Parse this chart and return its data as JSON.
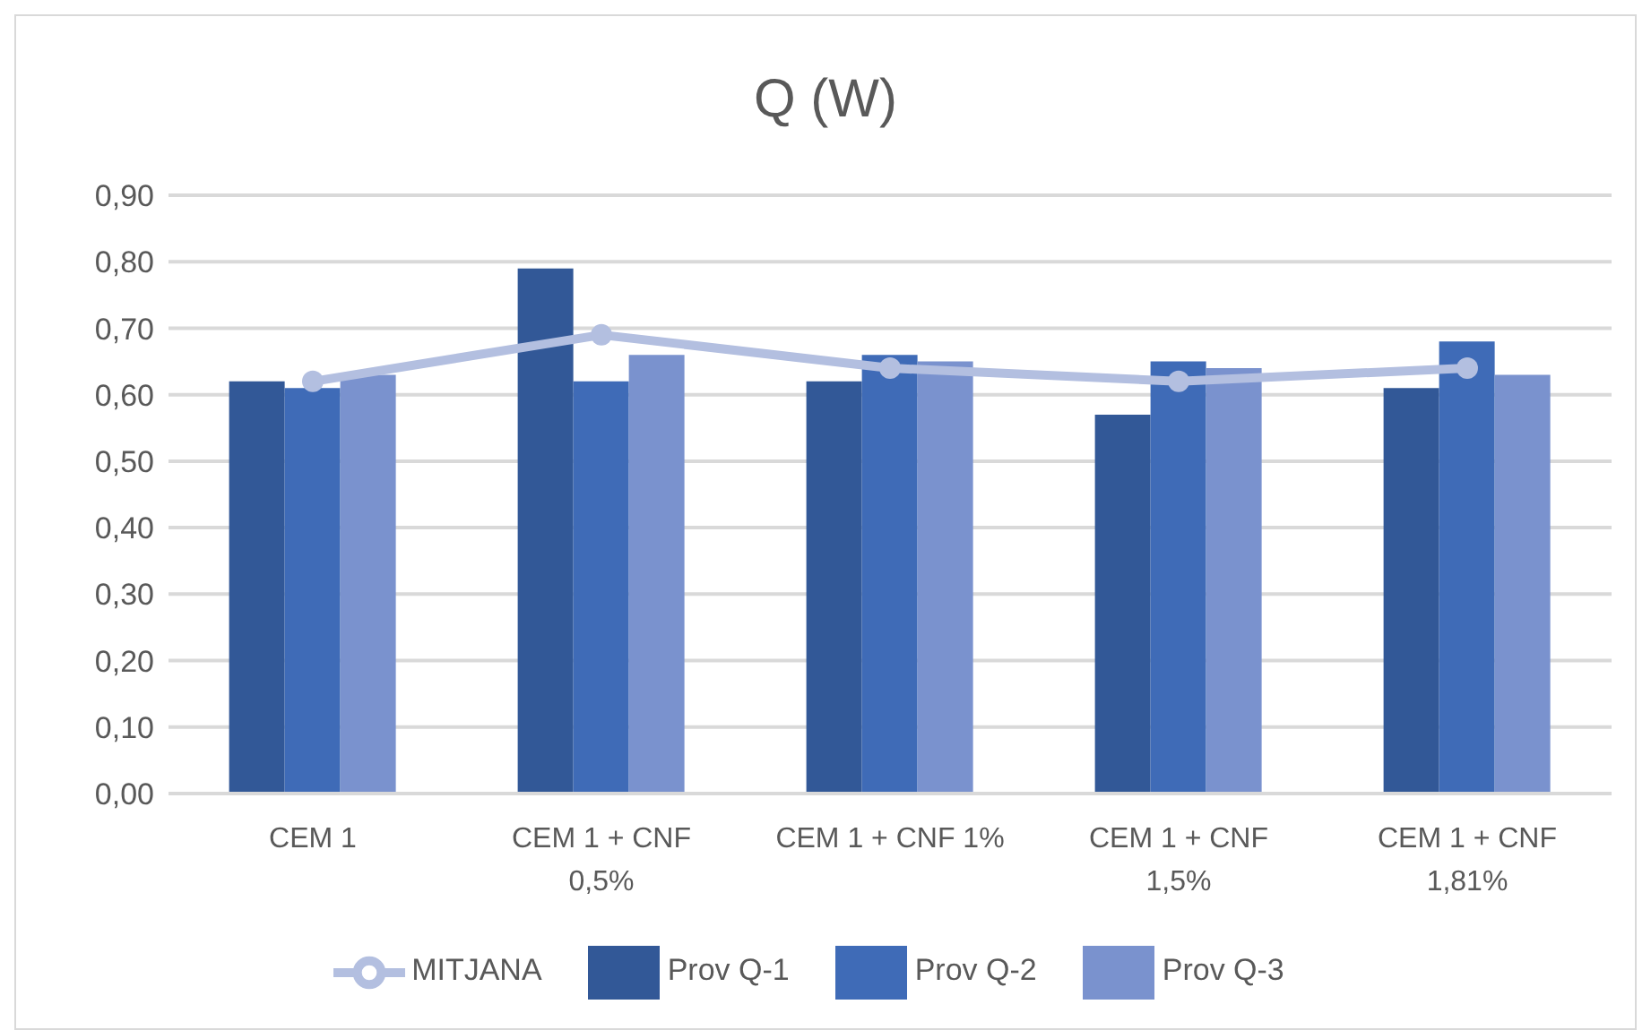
{
  "chart_data": {
    "type": "bar",
    "title": "Q  (W)",
    "categories": [
      "CEM 1",
      "CEM 1 + CNF 0,5%",
      "CEM 1 + CNF 1%",
      "CEM 1 + CNF 1,5%",
      "CEM 1 + CNF 1,81%"
    ],
    "series": [
      {
        "name": "Prov Q-1",
        "color": "#325897",
        "values": [
          0.62,
          0.79,
          0.62,
          0.57,
          0.61
        ]
      },
      {
        "name": "Prov Q-2",
        "color": "#3f6bb7",
        "values": [
          0.61,
          0.62,
          0.66,
          0.65,
          0.68
        ]
      },
      {
        "name": "Prov Q-3",
        "color": "#7a92ce",
        "values": [
          0.63,
          0.66,
          0.65,
          0.64,
          0.63
        ]
      },
      {
        "name": "MITJANA",
        "type": "line",
        "color": "#b3bfe0",
        "values": [
          0.62,
          0.69,
          0.64,
          0.62,
          0.64
        ]
      }
    ],
    "ylim": [
      0,
      0.9
    ],
    "yticks": [
      {
        "value": 0,
        "label": "0,00"
      },
      {
        "value": 0.1,
        "label": "0,10"
      },
      {
        "value": 0.2,
        "label": "0,20"
      },
      {
        "value": 0.3,
        "label": "0,30"
      },
      {
        "value": 0.4,
        "label": "0,40"
      },
      {
        "value": 0.5,
        "label": "0,50"
      },
      {
        "value": 0.6,
        "label": "0,60"
      },
      {
        "value": 0.7,
        "label": "0,70"
      },
      {
        "value": 0.8,
        "label": "0,80"
      },
      {
        "value": 0.9,
        "label": "0,90"
      }
    ],
    "grid": "y",
    "legend": "bottom",
    "marker": "circle"
  }
}
